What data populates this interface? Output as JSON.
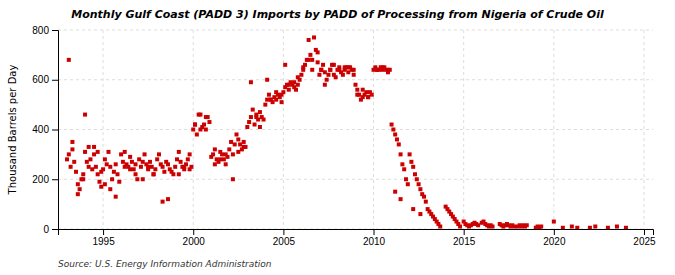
{
  "chart_data": {
    "type": "scatter",
    "title": "Monthly Gulf Coast (PADD 3) Imports by PADD of Processing from Nigeria of Crude Oil",
    "ylabel": "Thousand Barrels per Day",
    "annotations": [
      "Source: U.S. Energy Information Administration"
    ],
    "color": "#cc0000",
    "marker": "square",
    "grid": true,
    "xlim": [
      1992.5,
      2025.5
    ],
    "ylim": [
      0,
      800
    ],
    "xticks": [
      1995,
      2000,
      2005,
      2010,
      2015,
      2020,
      2025
    ],
    "yticks": [
      0,
      200,
      400,
      600,
      800
    ],
    "x": [
      1993.0,
      1993.1,
      1993.2,
      1993.3,
      1993.4,
      1993.5,
      1993.6,
      1993.7,
      1993.8,
      1993.9,
      1993.1,
      1993.3,
      1993.6,
      1993.9,
      1994.0,
      1994.1,
      1994.2,
      1994.3,
      1994.4,
      1994.5,
      1994.6,
      1994.7,
      1994.8,
      1994.9,
      1994.0,
      1994.2,
      1994.5,
      1994.7,
      1994.9,
      1995.0,
      1995.1,
      1995.2,
      1995.3,
      1995.4,
      1995.5,
      1995.6,
      1995.7,
      1995.8,
      1995.9,
      1995.1,
      1995.4,
      1995.7,
      1996.0,
      1996.1,
      1996.2,
      1996.3,
      1996.4,
      1996.5,
      1996.6,
      1996.7,
      1996.8,
      1996.9,
      1996.2,
      1996.5,
      1996.8,
      1997.0,
      1997.1,
      1997.2,
      1997.3,
      1997.4,
      1997.5,
      1997.6,
      1997.7,
      1997.8,
      1997.9,
      1997.2,
      1997.5,
      1997.8,
      1998.0,
      1998.1,
      1998.2,
      1998.3,
      1998.4,
      1998.5,
      1998.6,
      1998.7,
      1998.8,
      1998.9,
      1998.3,
      1998.6,
      1999.0,
      1999.1,
      1999.2,
      1999.3,
      1999.4,
      1999.5,
      1999.6,
      1999.7,
      1999.8,
      1999.9,
      1999.2,
      1999.5,
      1999.8,
      2000.0,
      2000.1,
      2000.2,
      2000.3,
      2000.4,
      2000.5,
      2000.6,
      2000.7,
      2000.8,
      2000.9,
      2000.1,
      2000.4,
      2000.7,
      2001.0,
      2001.1,
      2001.2,
      2001.3,
      2001.4,
      2001.5,
      2001.6,
      2001.7,
      2001.8,
      2001.9,
      2001.2,
      2001.5,
      2001.8,
      2002.0,
      2002.1,
      2002.2,
      2002.3,
      2002.4,
      2002.5,
      2002.6,
      2002.7,
      2002.8,
      2002.9,
      2002.2,
      2002.5,
      2002.8,
      2003.0,
      2003.1,
      2003.2,
      2003.3,
      2003.4,
      2003.5,
      2003.6,
      2003.7,
      2003.8,
      2003.9,
      2003.2,
      2003.5,
      2003.7,
      2004.0,
      2004.1,
      2004.2,
      2004.3,
      2004.4,
      2004.5,
      2004.6,
      2004.7,
      2004.8,
      2004.9,
      2004.1,
      2004.3,
      2004.6,
      2004.9,
      2005.0,
      2005.1,
      2005.2,
      2005.3,
      2005.4,
      2005.5,
      2005.6,
      2005.7,
      2005.8,
      2005.9,
      2005.1,
      2005.3,
      2005.6,
      2005.8,
      2006.0,
      2006.1,
      2006.2,
      2006.3,
      2006.4,
      2006.5,
      2006.6,
      2006.7,
      2006.8,
      2006.9,
      2006.1,
      2006.4,
      2006.6,
      2006.9,
      2007.0,
      2007.1,
      2007.2,
      2007.3,
      2007.4,
      2007.5,
      2007.6,
      2007.7,
      2007.8,
      2007.9,
      2007.1,
      2007.3,
      2007.6,
      2007.8,
      2008.0,
      2008.1,
      2008.2,
      2008.3,
      2008.4,
      2008.5,
      2008.6,
      2008.7,
      2008.8,
      2008.9,
      2008.1,
      2008.4,
      2008.6,
      2008.9,
      2009.0,
      2009.1,
      2009.2,
      2009.3,
      2009.4,
      2009.5,
      2009.6,
      2009.7,
      2009.8,
      2009.9,
      2009.1,
      2009.4,
      2009.7,
      2010.0,
      2010.1,
      2010.2,
      2010.3,
      2010.4,
      2010.5,
      2010.6,
      2010.7,
      2010.8,
      2010.9,
      2010.2,
      2010.5,
      2010.8,
      2011.0,
      2011.1,
      2011.2,
      2011.3,
      2011.4,
      2011.5,
      2011.6,
      2011.7,
      2011.8,
      2011.9,
      2011.2,
      2011.5,
      2012.0,
      2012.1,
      2012.2,
      2012.3,
      2012.4,
      2012.5,
      2012.6,
      2012.7,
      2012.8,
      2012.9,
      2012.2,
      2012.6,
      2013.0,
      2013.1,
      2013.2,
      2013.3,
      2013.4,
      2013.5,
      2013.6,
      2013.7,
      2014.0,
      2014.1,
      2014.2,
      2014.3,
      2014.4,
      2014.5,
      2014.6,
      2014.7,
      2014.8,
      2015.0,
      2015.1,
      2015.2,
      2015.3,
      2015.4,
      2015.5,
      2015.6,
      2015.7,
      2015.8,
      2016.0,
      2016.1,
      2016.2,
      2016.3,
      2016.4,
      2016.5,
      2016.6,
      2017.0,
      2017.1,
      2017.2,
      2017.3,
      2017.4,
      2017.5,
      2017.6,
      2017.7,
      2017.8,
      2018.0,
      2018.1,
      2018.2,
      2018.3,
      2018.4,
      2018.5,
      2019.0,
      2019.1,
      2019.2,
      2019.3,
      2020.0,
      2020.5,
      2021.0,
      2021.3,
      2022.0,
      2022.3,
      2023.0,
      2023.5,
      2024.0
    ],
    "values": [
      280,
      300,
      250,
      320,
      270,
      230,
      180,
      160,
      200,
      220,
      680,
      350,
      140,
      200,
      310,
      270,
      330,
      280,
      240,
      300,
      250,
      220,
      190,
      170,
      460,
      250,
      330,
      310,
      230,
      240,
      280,
      260,
      310,
      250,
      200,
      230,
      260,
      220,
      190,
      180,
      160,
      130,
      300,
      270,
      310,
      260,
      250,
      290,
      270,
      240,
      220,
      200,
      250,
      240,
      260,
      280,
      250,
      270,
      300,
      260,
      240,
      270,
      250,
      220,
      240,
      200,
      250,
      220,
      280,
      300,
      260,
      250,
      230,
      270,
      260,
      240,
      230,
      220,
      110,
      120,
      250,
      280,
      310,
      270,
      250,
      240,
      260,
      280,
      300,
      250,
      220,
      250,
      240,
      400,
      420,
      380,
      460,
      400,
      410,
      420,
      400,
      450,
      430,
      420,
      460,
      450,
      290,
      300,
      320,
      280,
      270,
      310,
      300,
      280,
      260,
      290,
      260,
      280,
      300,
      320,
      350,
      300,
      340,
      380,
      360,
      340,
      320,
      350,
      330,
      200,
      310,
      330,
      410,
      430,
      450,
      480,
      420,
      460,
      440,
      470,
      450,
      440,
      590,
      450,
      410,
      500,
      520,
      540,
      520,
      510,
      530,
      520,
      540,
      530,
      510,
      600,
      520,
      550,
      540,
      550,
      570,
      580,
      560,
      590,
      580,
      570,
      560,
      580,
      600,
      660,
      580,
      590,
      610,
      620,
      640,
      660,
      680,
      760,
      700,
      680,
      770,
      720,
      710,
      650,
      680,
      640,
      670,
      620,
      640,
      660,
      580,
      600,
      620,
      640,
      660,
      620,
      610,
      640,
      630,
      640,
      660,
      640,
      650,
      630,
      620,
      640,
      650,
      630,
      650,
      640,
      620,
      640,
      650,
      650,
      640,
      580,
      560,
      540,
      520,
      560,
      540,
      550,
      530,
      550,
      540,
      540,
      530,
      530,
      640,
      650,
      640,
      640,
      650,
      640,
      650,
      640,
      630,
      640,
      640,
      650,
      640,
      420,
      400,
      380,
      360,
      340,
      300,
      260,
      240,
      200,
      180,
      150,
      120,
      300,
      270,
      250,
      220,
      200,
      180,
      160,
      140,
      130,
      110,
      80,
      60,
      80,
      70,
      60,
      50,
      40,
      30,
      20,
      10,
      90,
      80,
      70,
      60,
      50,
      40,
      30,
      20,
      10,
      30,
      20,
      15,
      10,
      15,
      20,
      25,
      20,
      15,
      25,
      30,
      20,
      15,
      10,
      15,
      10,
      20,
      15,
      10,
      15,
      20,
      15,
      10,
      15,
      10,
      10,
      15,
      10,
      15,
      10,
      15,
      5,
      10,
      5,
      10,
      30,
      5,
      10,
      5,
      5,
      10,
      5,
      10,
      5
    ]
  }
}
